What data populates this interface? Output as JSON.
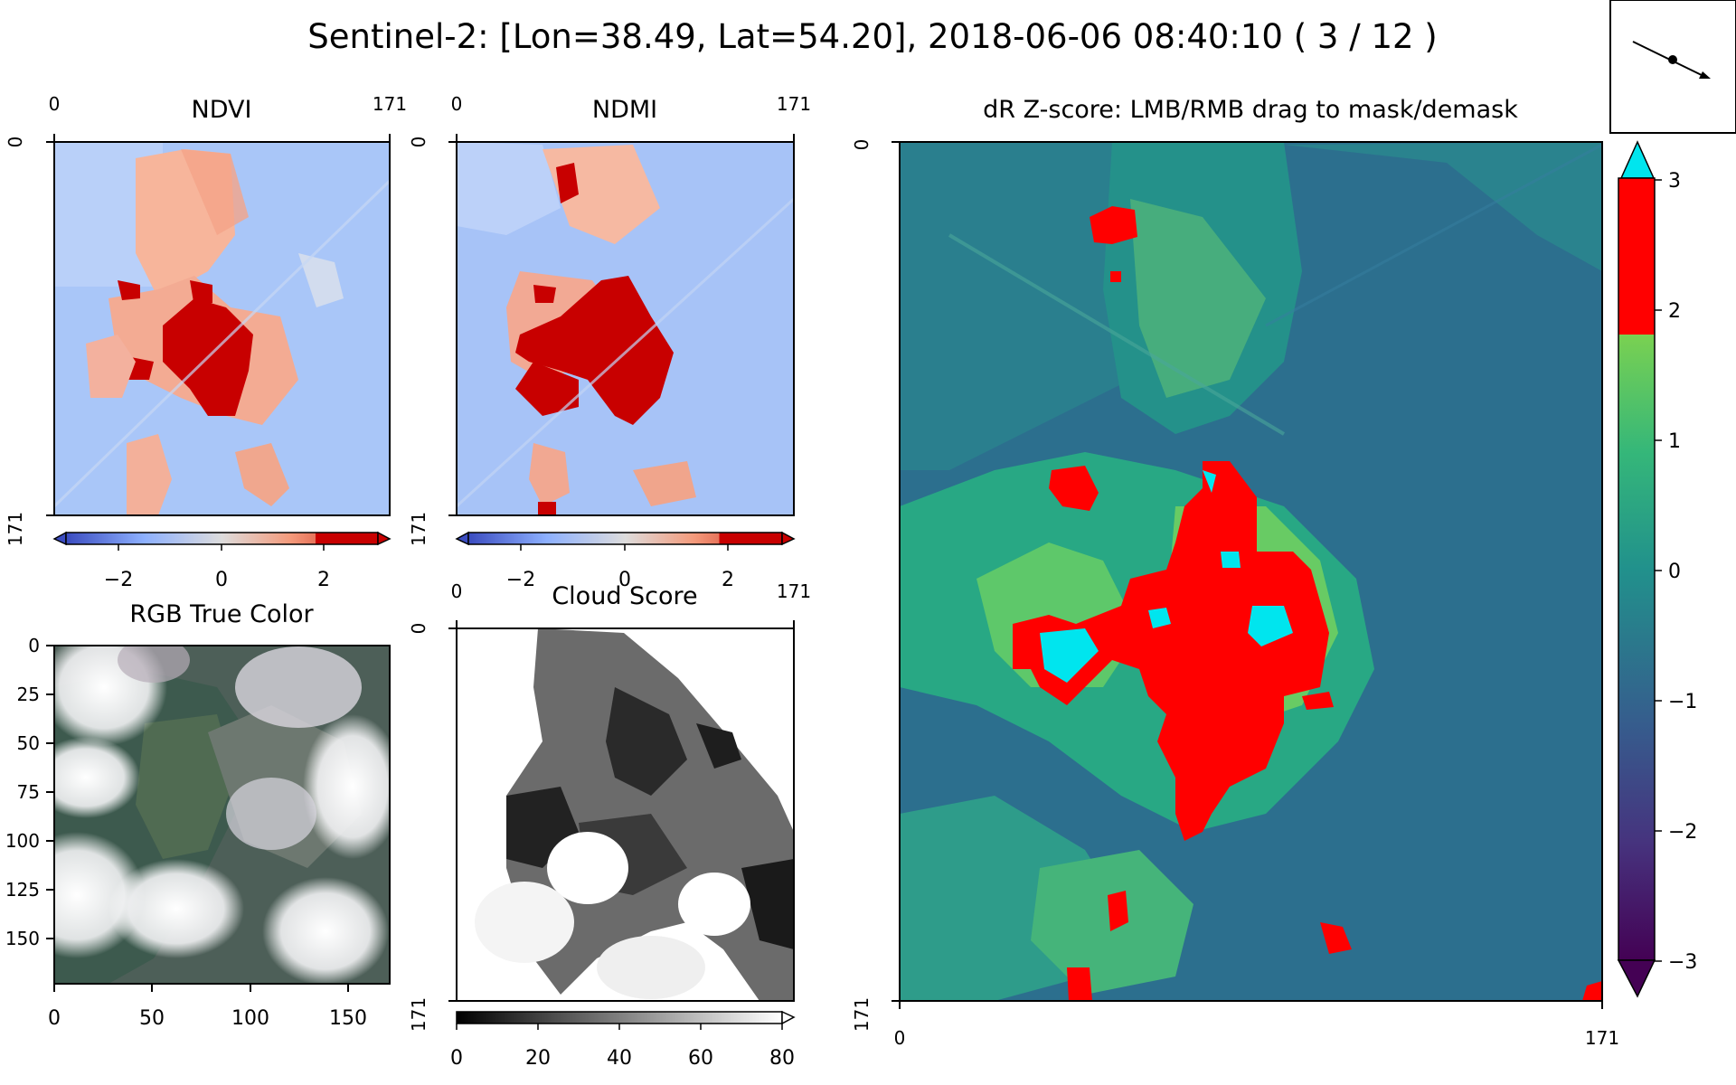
{
  "title": "Sentinel-2: [Lon=38.49, Lat=54.20], 2018-06-06 08:40:10 ( 3 / 12 )",
  "panels": {
    "ndvi": {
      "title": "NDVI",
      "top_ticks": [
        "0",
        "171"
      ],
      "left_ticks": [
        "0",
        "171"
      ],
      "colorbar_ticks": [
        "−2",
        "0",
        "2"
      ],
      "colormap": "coolwarm/red",
      "extend": "both"
    },
    "ndmi": {
      "title": "NDMI",
      "top_ticks": [
        "0",
        "171"
      ],
      "left_ticks": [
        "0",
        "171"
      ],
      "colorbar_ticks": [
        "−2",
        "0",
        "2"
      ],
      "colormap": "coolwarm/red",
      "extend": "both"
    },
    "rgb": {
      "title": "RGB True Color",
      "left_ticks": [
        "0",
        "25",
        "50",
        "75",
        "100",
        "125",
        "150"
      ],
      "bottom_ticks": [
        "0",
        "50",
        "100",
        "150"
      ]
    },
    "cloud": {
      "title": "Cloud Score",
      "top_ticks": [
        "0",
        "171"
      ],
      "left_ticks": [
        "0",
        "171"
      ],
      "colorbar_ticks": [
        "0",
        "20",
        "40",
        "60",
        "80"
      ],
      "colormap": "greys",
      "extend": "max"
    },
    "zscore": {
      "title": "dR Z-score: LMB/RMB drag to mask/demask",
      "left_ticks": [
        "0",
        "171"
      ],
      "bottom_ticks": [
        "0",
        "171"
      ],
      "colorbar_ticks": [
        "3",
        "2",
        "1",
        "0",
        "−1",
        "−2",
        "−3"
      ],
      "colormap": "viridis",
      "over_color": "#00e5ee",
      "threshold_color": "#ff0000",
      "extend": "both"
    }
  },
  "direction_widget": {
    "icon": "direction-arrow-icon"
  },
  "colors": {
    "red": "#ff0000",
    "cyan": "#00e5ee",
    "viridis_mid": "#21918c",
    "coolwarm_blue": "#3b4cc0"
  }
}
